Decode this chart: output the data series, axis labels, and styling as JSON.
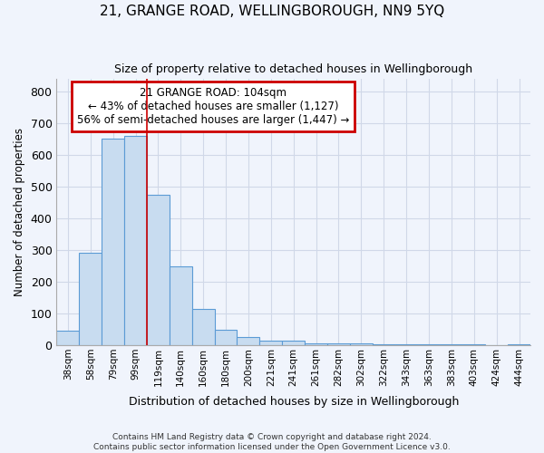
{
  "title": "21, GRANGE ROAD, WELLINGBOROUGH, NN9 5YQ",
  "subtitle": "Size of property relative to detached houses in Wellingborough",
  "xlabel": "Distribution of detached houses by size in Wellingborough",
  "ylabel": "Number of detached properties",
  "footnote": "Contains HM Land Registry data © Crown copyright and database right 2024.\nContains public sector information licensed under the Open Government Licence v3.0.",
  "categories": [
    "38sqm",
    "58sqm",
    "79sqm",
    "99sqm",
    "119sqm",
    "140sqm",
    "160sqm",
    "180sqm",
    "200sqm",
    "221sqm",
    "241sqm",
    "261sqm",
    "282sqm",
    "302sqm",
    "322sqm",
    "343sqm",
    "363sqm",
    "383sqm",
    "403sqm",
    "424sqm",
    "444sqm"
  ],
  "values": [
    45,
    292,
    650,
    660,
    475,
    248,
    113,
    48,
    25,
    15,
    15,
    5,
    5,
    5,
    3,
    3,
    3,
    3,
    3,
    0,
    3
  ],
  "bar_color": "#c8dcf0",
  "bar_edge_color": "#5b9bd5",
  "grid_color": "#d0d8e8",
  "background_color": "#ffffff",
  "fig_background_color": "#f0f4fc",
  "red_line_x": 3.5,
  "annotation_line1": "21 GRANGE ROAD: 104sqm",
  "annotation_line2": "← 43% of detached houses are smaller (1,127)",
  "annotation_line3": "56% of semi-detached houses are larger (1,447) →",
  "annotation_box_facecolor": "#ffffff",
  "annotation_box_edgecolor": "#cc0000",
  "ylim": [
    0,
    840
  ],
  "yticks": [
    0,
    100,
    200,
    300,
    400,
    500,
    600,
    700,
    800
  ]
}
